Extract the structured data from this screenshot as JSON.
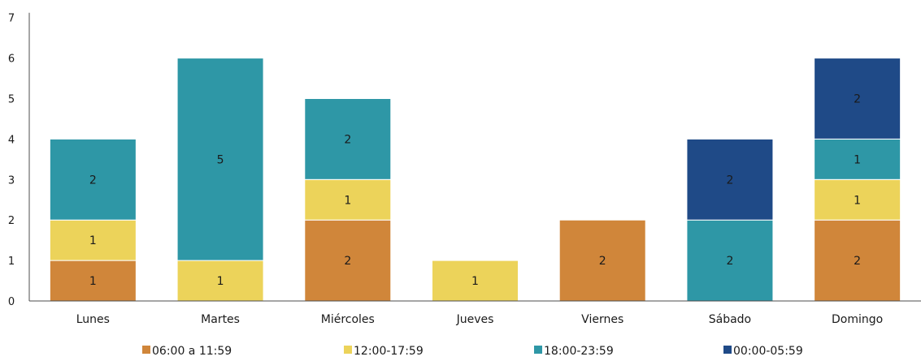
{
  "chart_data": {
    "type": "bar",
    "stacked": true,
    "categories": [
      "Lunes",
      "Martes",
      "Miércoles",
      "Jueves",
      "Viernes",
      "Sábado",
      "Domingo"
    ],
    "series": [
      {
        "name": "06:00 a 11:59",
        "color": "#D0863A",
        "values": [
          1,
          0,
          2,
          0,
          2,
          0,
          2
        ]
      },
      {
        "name": "12:00-17:59",
        "color": "#ECD35A",
        "values": [
          1,
          1,
          1,
          1,
          0,
          0,
          1
        ]
      },
      {
        "name": "18:00-23:59",
        "color": "#2E97A6",
        "values": [
          2,
          5,
          2,
          0,
          0,
          2,
          1
        ]
      },
      {
        "name": "00:00-05:59",
        "color": "#1F4A87",
        "values": [
          0,
          0,
          0,
          0,
          0,
          2,
          2
        ]
      }
    ],
    "ylim": [
      0,
      7
    ],
    "yticks": [
      "0",
      "1",
      "2",
      "3",
      "4",
      "5",
      "6",
      "7"
    ],
    "grid": false,
    "legend_position": "bottom",
    "data_labels": true
  }
}
